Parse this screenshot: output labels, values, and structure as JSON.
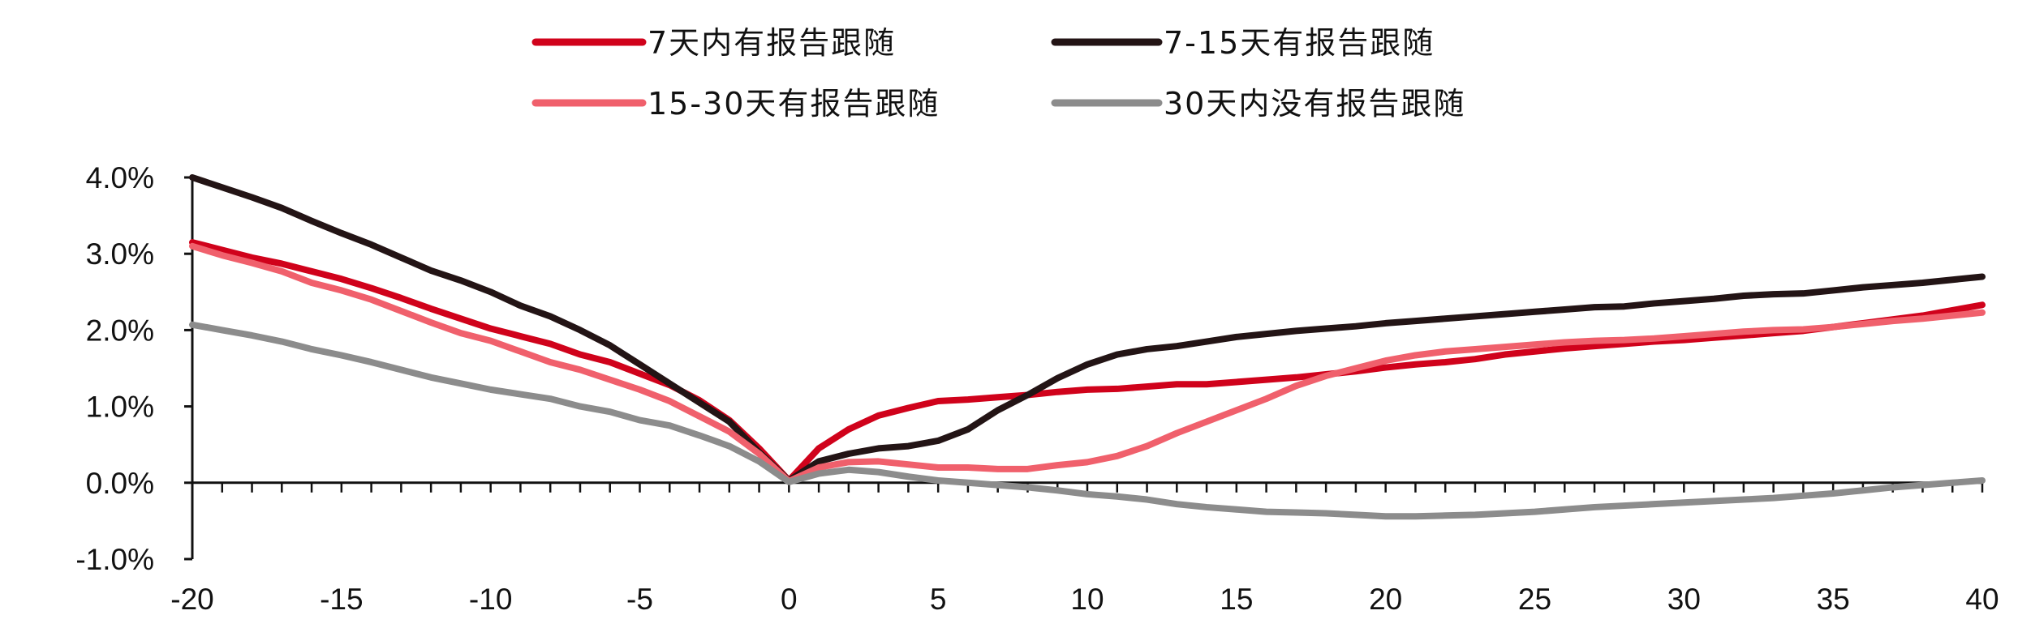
{
  "chart_data": {
    "type": "line",
    "title": "",
    "xlabel": "",
    "ylabel": "",
    "xlim": [
      -20,
      40
    ],
    "ylim": [
      -1.0,
      4.0
    ],
    "x_ticks": [
      "-20",
      "-15",
      "-10",
      "-5",
      "0",
      "5",
      "10",
      "15",
      "20",
      "25",
      "30",
      "35",
      "40"
    ],
    "y_ticks": [
      "4.0%",
      "3.0%",
      "2.0%",
      "1.0%",
      "0.0%",
      "-1.0%"
    ],
    "legend_position": "top",
    "grid": false,
    "x": [
      -20,
      -19,
      -18,
      -17,
      -16,
      -15,
      -14,
      -13,
      -12,
      -11,
      -10,
      -9,
      -8,
      -7,
      -6,
      -5,
      -4,
      -3,
      -2,
      -1,
      0,
      1,
      2,
      3,
      4,
      5,
      6,
      7,
      8,
      9,
      10,
      11,
      12,
      13,
      14,
      15,
      16,
      17,
      18,
      19,
      20,
      21,
      22,
      23,
      24,
      25,
      26,
      27,
      28,
      29,
      30,
      31,
      32,
      33,
      34,
      35,
      36,
      37,
      38,
      39,
      40
    ],
    "series": [
      {
        "name": "7天内有报告跟随",
        "color": "#d0021b",
        "values": [
          3.15,
          3.05,
          2.95,
          2.87,
          2.77,
          2.67,
          2.55,
          2.42,
          2.28,
          2.15,
          2.02,
          1.92,
          1.82,
          1.68,
          1.58,
          1.43,
          1.28,
          1.08,
          0.82,
          0.45,
          0.03,
          0.45,
          0.7,
          0.88,
          0.98,
          1.07,
          1.09,
          1.12,
          1.15,
          1.19,
          1.22,
          1.23,
          1.26,
          1.29,
          1.29,
          1.32,
          1.35,
          1.38,
          1.42,
          1.46,
          1.51,
          1.55,
          1.58,
          1.62,
          1.68,
          1.72,
          1.76,
          1.79,
          1.82,
          1.85,
          1.87,
          1.9,
          1.93,
          1.96,
          1.99,
          2.04,
          2.09,
          2.14,
          2.19,
          2.26,
          2.33
        ]
      },
      {
        "name": "7-15天有报告跟随",
        "color": "#231415",
        "values": [
          4.0,
          3.87,
          3.74,
          3.6,
          3.43,
          3.27,
          3.12,
          2.95,
          2.78,
          2.65,
          2.5,
          2.32,
          2.18,
          2.0,
          1.8,
          1.55,
          1.3,
          1.05,
          0.8,
          0.4,
          0.03,
          0.28,
          0.38,
          0.45,
          0.48,
          0.55,
          0.7,
          0.95,
          1.15,
          1.37,
          1.55,
          1.68,
          1.75,
          1.79,
          1.85,
          1.91,
          1.95,
          1.99,
          2.02,
          2.05,
          2.09,
          2.12,
          2.15,
          2.18,
          2.21,
          2.24,
          2.27,
          2.3,
          2.31,
          2.35,
          2.38,
          2.41,
          2.45,
          2.47,
          2.48,
          2.52,
          2.56,
          2.59,
          2.62,
          2.66,
          2.7
        ]
      },
      {
        "name": "15-30天有报告跟随",
        "color": "#f0606c",
        "values": [
          3.1,
          2.98,
          2.88,
          2.77,
          2.62,
          2.52,
          2.4,
          2.25,
          2.1,
          1.96,
          1.86,
          1.72,
          1.58,
          1.48,
          1.35,
          1.22,
          1.07,
          0.87,
          0.67,
          0.38,
          0.02,
          0.2,
          0.27,
          0.28,
          0.24,
          0.2,
          0.2,
          0.18,
          0.18,
          0.23,
          0.27,
          0.35,
          0.48,
          0.65,
          0.8,
          0.95,
          1.1,
          1.27,
          1.4,
          1.5,
          1.6,
          1.67,
          1.72,
          1.75,
          1.78,
          1.81,
          1.84,
          1.86,
          1.87,
          1.89,
          1.92,
          1.95,
          1.98,
          2.0,
          2.01,
          2.04,
          2.08,
          2.12,
          2.15,
          2.19,
          2.23
        ]
      },
      {
        "name": "30天内没有报告跟随",
        "color": "#8c8c8c",
        "values": [
          2.07,
          2.0,
          1.93,
          1.85,
          1.75,
          1.67,
          1.58,
          1.48,
          1.38,
          1.3,
          1.22,
          1.16,
          1.1,
          1.0,
          0.93,
          0.82,
          0.75,
          0.62,
          0.48,
          0.28,
          0.01,
          0.12,
          0.17,
          0.14,
          0.08,
          0.03,
          0.0,
          -0.03,
          -0.06,
          -0.1,
          -0.15,
          -0.18,
          -0.22,
          -0.28,
          -0.32,
          -0.35,
          -0.38,
          -0.39,
          -0.4,
          -0.42,
          -0.44,
          -0.44,
          -0.43,
          -0.42,
          -0.4,
          -0.38,
          -0.35,
          -0.32,
          -0.3,
          -0.28,
          -0.26,
          -0.24,
          -0.22,
          -0.2,
          -0.17,
          -0.14,
          -0.1,
          -0.06,
          -0.03,
          0.0,
          0.03
        ]
      }
    ]
  }
}
